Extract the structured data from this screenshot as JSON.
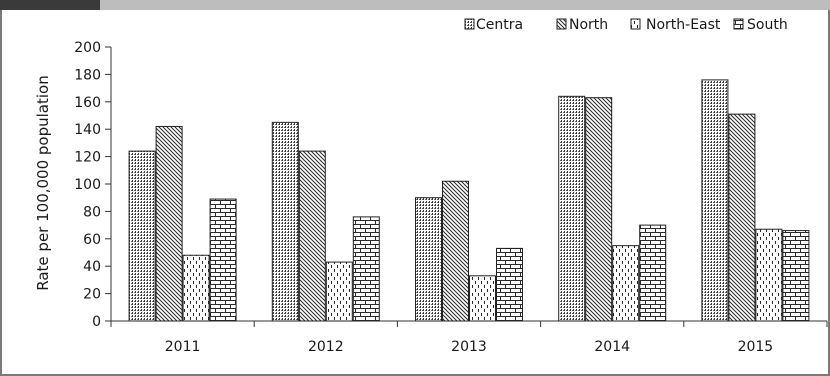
{
  "chart_data": {
    "type": "bar",
    "ylabel": "Rate per 100,000 population",
    "xlabel": "",
    "ylim": [
      0,
      200
    ],
    "yticks": [
      0,
      20,
      40,
      60,
      80,
      100,
      120,
      140,
      160,
      180,
      200
    ],
    "categories": [
      "2011",
      "2012",
      "2013",
      "2014",
      "2015"
    ],
    "series": [
      {
        "name": "Centra",
        "pattern": "vertical-dots",
        "values": [
          124,
          145,
          90,
          164,
          176
        ]
      },
      {
        "name": "North",
        "pattern": "diagonal-lines",
        "values": [
          142,
          124,
          102,
          163,
          151
        ]
      },
      {
        "name": "North-East",
        "pattern": "vertical-dashes",
        "values": [
          48,
          43,
          33,
          55,
          67
        ]
      },
      {
        "name": "South",
        "pattern": "brick",
        "values": [
          89,
          76,
          53,
          70,
          66
        ]
      }
    ],
    "legend_position": "top-right",
    "grid": false
  }
}
